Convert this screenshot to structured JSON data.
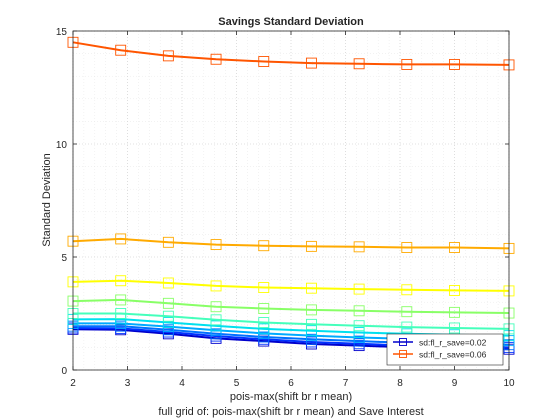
{
  "chart_data": {
    "type": "line",
    "title": "Savings Standard Deviation",
    "xlabel": "pois-max(shift br r mean)",
    "ylabel": "Standard Deviation",
    "caption": "full grid of: pois-max(shift br r mean) and Save Interest",
    "xlim": [
      2,
      10
    ],
    "ylim": [
      0,
      15
    ],
    "x_ticks": [
      "2",
      "3",
      "4",
      "5",
      "6",
      "7",
      "8",
      "9",
      "10"
    ],
    "y_ticks": [
      "0",
      "5",
      "10",
      "15"
    ],
    "grid": true,
    "marker": "square",
    "x": [
      2,
      2.875,
      3.75,
      4.625,
      5.5,
      6.375,
      7.25,
      8.125,
      9,
      10
    ],
    "series": [
      {
        "color": "#0000cc",
        "values": [
          1.8,
          1.78,
          1.6,
          1.4,
          1.28,
          1.15,
          1.08,
          1.0,
          0.97,
          0.92
        ]
      },
      {
        "color": "#0033ff",
        "values": [
          1.86,
          1.84,
          1.68,
          1.5,
          1.36,
          1.24,
          1.16,
          1.08,
          1.04,
          1.0
        ]
      },
      {
        "color": "#0070ff",
        "values": [
          1.94,
          1.94,
          1.78,
          1.6,
          1.46,
          1.36,
          1.28,
          1.2,
          1.16,
          1.12
        ]
      },
      {
        "color": "#00aaff",
        "values": [
          2.06,
          2.06,
          1.92,
          1.76,
          1.62,
          1.52,
          1.44,
          1.38,
          1.34,
          1.3
        ]
      },
      {
        "color": "#00e0ee",
        "values": [
          2.24,
          2.25,
          2.1,
          1.95,
          1.82,
          1.74,
          1.66,
          1.6,
          1.56,
          1.52
        ]
      },
      {
        "color": "#44ffbb",
        "values": [
          2.5,
          2.5,
          2.38,
          2.22,
          2.1,
          2.02,
          1.96,
          1.9,
          1.86,
          1.82
        ]
      },
      {
        "color": "#88ff66",
        "values": [
          3.05,
          3.1,
          2.95,
          2.8,
          2.72,
          2.66,
          2.62,
          2.58,
          2.55,
          2.52
        ]
      },
      {
        "color": "#ffff00",
        "values": [
          3.9,
          3.95,
          3.85,
          3.72,
          3.65,
          3.62,
          3.58,
          3.55,
          3.52,
          3.5
        ]
      },
      {
        "color": "#ffaa00",
        "values": [
          5.7,
          5.8,
          5.65,
          5.55,
          5.5,
          5.47,
          5.45,
          5.42,
          5.42,
          5.38
        ]
      },
      {
        "color": "#ff5500",
        "values": [
          14.5,
          14.15,
          13.9,
          13.75,
          13.65,
          13.58,
          13.55,
          13.52,
          13.52,
          13.5
        ]
      }
    ],
    "legend": {
      "placement": "bottom-right",
      "entries": [
        {
          "label": "sd:fl_r_save=0.02",
          "color": "#0000cc"
        },
        {
          "label": "sd:fl_r_save=0.06",
          "color": "#ff5500"
        }
      ]
    }
  }
}
